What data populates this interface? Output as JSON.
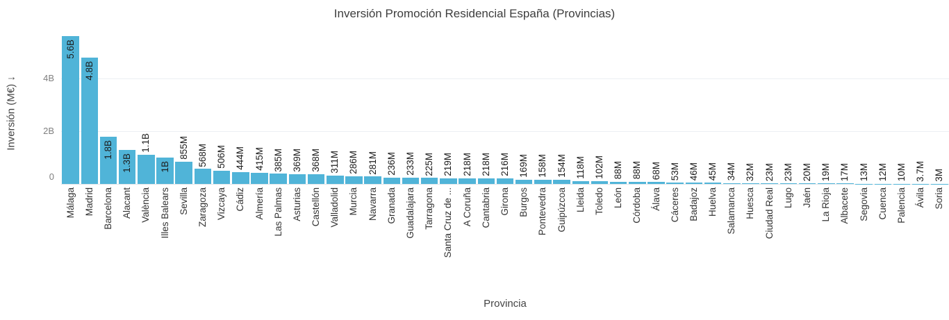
{
  "title": "Inversión Promoción Residencial España (Provincias)",
  "y_axis": {
    "title": "Inversión (M€) ↓",
    "ticks": {
      "t4b": "4B",
      "t2b": "2B",
      "t0": "0"
    }
  },
  "x_axis": {
    "title": "Provincia"
  },
  "colors": {
    "bar": "#50b4d8",
    "gridline": "#eceff3",
    "tick_text": "#7f7f7f",
    "label_text": "#1c1c1c",
    "title_text": "#3d3d3d"
  },
  "chart_data": {
    "type": "bar",
    "title": "Inversión Promoción Residencial España (Provincias)",
    "xlabel": "Provincia",
    "ylabel": "Inversión (M€) ↓",
    "unit": "M€",
    "ylim": [
      0,
      5600
    ],
    "yticks_M": [
      0,
      2000,
      4000
    ],
    "grid": true,
    "sort": "descending",
    "categories": [
      "Málaga",
      "Madrid",
      "Barcelona",
      "Alacant",
      "València",
      "Illes Balears",
      "Sevilla",
      "Zaragoza",
      "Vizcaya",
      "Cádiz",
      "Almería",
      "Las Palmas",
      "Asturias",
      "Castellón",
      "Valladolid",
      "Murcia",
      "Navarra",
      "Granada",
      "Guadalajara",
      "Tarragona",
      "Santa Cruz de ...",
      "A Coruña",
      "Cantabria",
      "Girona",
      "Burgos",
      "Pontevedra",
      "Guipúzcoa",
      "Lleida",
      "Toledo",
      "León",
      "Córdoba",
      "Álava",
      "Cáceres",
      "Badajoz",
      "Huelva",
      "Salamanca",
      "Huesca",
      "Ciudad Real",
      "Lugo",
      "Jaén",
      "La Rioja",
      "Albacete",
      "Segovia",
      "Cuenca",
      "Palencia",
      "Ávila",
      "Soria"
    ],
    "values_M": [
      5600,
      4800,
      1800,
      1300,
      1100,
      1000,
      855,
      568,
      506,
      444,
      415,
      385,
      369,
      368,
      311,
      286,
      281,
      236,
      233,
      225,
      219,
      218,
      218,
      216,
      169,
      158,
      154,
      118,
      102,
      88,
      88,
      68,
      53,
      46,
      45,
      34,
      32,
      23,
      23,
      20,
      19,
      17,
      13,
      12,
      10,
      3.7,
      3
    ],
    "value_labels": [
      "5.6B",
      "4.8B",
      "1.8B",
      "1.3B",
      "1.1B",
      "1B",
      "855M",
      "568M",
      "506M",
      "444M",
      "415M",
      "385M",
      "369M",
      "368M",
      "311M",
      "286M",
      "281M",
      "236M",
      "233M",
      "225M",
      "219M",
      "218M",
      "218M",
      "216M",
      "169M",
      "158M",
      "154M",
      "118M",
      "102M",
      "88M",
      "88M",
      "68M",
      "53M",
      "46M",
      "45M",
      "34M",
      "32M",
      "23M",
      "23M",
      "20M",
      "19M",
      "17M",
      "13M",
      "12M",
      "10M",
      "3.7M",
      "3M"
    ],
    "label_inside": [
      true,
      true,
      true,
      true,
      false,
      true,
      false,
      false,
      false,
      false,
      false,
      false,
      false,
      false,
      false,
      false,
      false,
      false,
      false,
      false,
      false,
      false,
      false,
      false,
      false,
      false,
      false,
      false,
      false,
      false,
      false,
      false,
      false,
      false,
      false,
      false,
      false,
      false,
      false,
      false,
      false,
      false,
      false,
      false,
      false,
      false,
      false
    ]
  }
}
